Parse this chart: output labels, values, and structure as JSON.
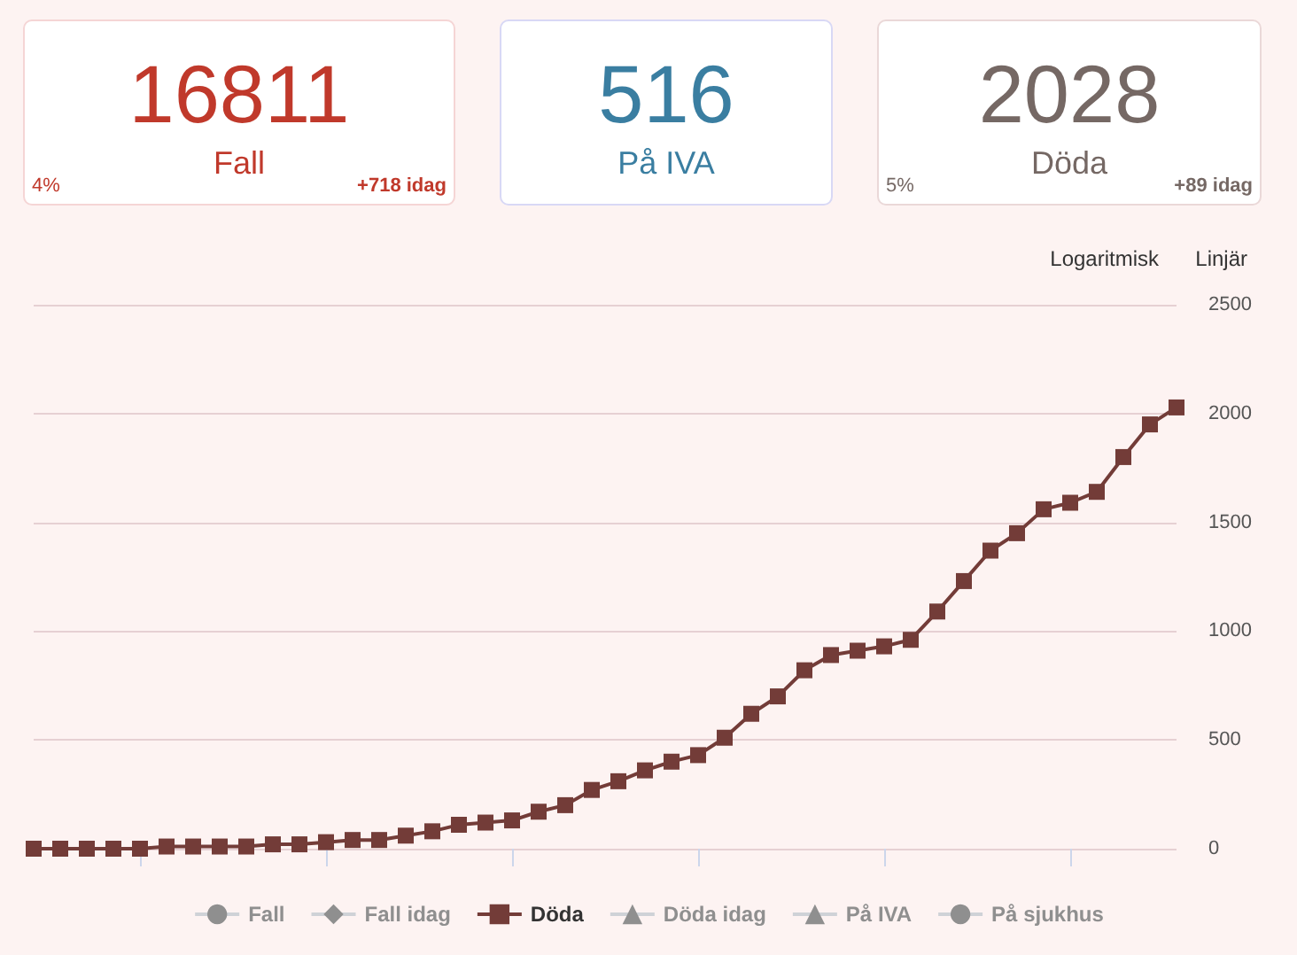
{
  "chart_data": [
    {
      "type": "other",
      "title": "16811",
      "subtitle": "Fall",
      "annotations": [
        "4%",
        "+718 idag"
      ],
      "color": "#c0392b"
    },
    {
      "type": "other",
      "title": "516",
      "subtitle": "På IVA",
      "color": "#3a7ea1"
    },
    {
      "type": "other",
      "title": "2028",
      "subtitle": "Döda",
      "annotations": [
        "5%",
        "+89 idag"
      ],
      "color": "#756864"
    },
    {
      "type": "line",
      "categories": [
        null,
        null,
        null,
        null,
        null,
        null,
        null,
        null,
        null,
        null,
        null,
        null,
        null,
        null,
        null,
        null,
        null,
        null,
        null,
        null,
        null,
        null,
        null,
        null,
        null,
        null,
        null,
        null,
        null,
        null,
        null,
        null,
        null,
        null,
        null,
        null,
        null,
        null,
        null,
        null,
        null,
        null,
        null,
        null
      ],
      "series": [
        {
          "name": "Fall",
          "color": "#cccccc",
          "marker": "circle",
          "values": [
            null,
            null,
            null,
            null,
            null,
            null,
            null,
            null,
            null,
            null,
            null,
            null,
            null,
            null,
            null,
            null,
            null,
            null,
            null,
            null,
            null,
            null,
            null,
            null,
            null,
            null,
            null,
            null,
            null,
            null,
            null,
            null,
            null,
            null,
            null,
            null,
            null,
            null,
            null,
            null,
            null,
            null,
            null,
            null
          ]
        },
        {
          "name": "Fall idag",
          "color": "#cccccc",
          "marker": "diamond",
          "values": [
            null,
            null,
            null,
            null,
            null,
            null,
            null,
            null,
            null,
            null,
            null,
            null,
            null,
            null,
            null,
            null,
            null,
            null,
            null,
            null,
            null,
            null,
            null,
            null,
            null,
            null,
            null,
            null,
            null,
            null,
            null,
            null,
            null,
            null,
            null,
            null,
            null,
            null,
            null,
            null,
            null,
            null,
            null,
            null
          ]
        },
        {
          "name": "Döda",
          "color": "#733c38",
          "marker": "square",
          "values": [
            0,
            0,
            0,
            0,
            0,
            10,
            10,
            10,
            10,
            20,
            20,
            30,
            40,
            40,
            60,
            80,
            110,
            120,
            130,
            170,
            200,
            270,
            310,
            360,
            400,
            430,
            510,
            620,
            700,
            820,
            890,
            910,
            930,
            960,
            1090,
            1230,
            1370,
            1450,
            1560,
            1590,
            1640,
            1800,
            1950,
            2028
          ]
        },
        {
          "name": "Döda idag",
          "color": "#cccccc",
          "marker": "triangle",
          "values": [
            null,
            null,
            null,
            null,
            null,
            null,
            null,
            null,
            null,
            null,
            null,
            null,
            null,
            null,
            null,
            null,
            null,
            null,
            null,
            null,
            null,
            null,
            null,
            null,
            null,
            null,
            null,
            null,
            null,
            null,
            null,
            null,
            null,
            null,
            null,
            null,
            null,
            null,
            null,
            null,
            null,
            null,
            null,
            null
          ]
        },
        {
          "name": "På IVA",
          "color": "#cccccc",
          "marker": "triangle",
          "values": [
            null,
            null,
            null,
            null,
            null,
            null,
            null,
            null,
            null,
            null,
            null,
            null,
            null,
            null,
            null,
            null,
            null,
            null,
            null,
            null,
            null,
            null,
            null,
            null,
            null,
            null,
            null,
            null,
            null,
            null,
            null,
            null,
            null,
            null,
            null,
            null,
            null,
            null,
            null,
            null,
            null,
            null,
            null,
            null
          ]
        },
        {
          "name": "På sjukhus",
          "color": "#cccccc",
          "marker": "circle",
          "values": [
            null,
            null,
            null,
            null,
            null,
            null,
            null,
            null,
            null,
            null,
            null,
            null,
            null,
            null,
            null,
            null,
            null,
            null,
            null,
            null,
            null,
            null,
            null,
            null,
            null,
            null,
            null,
            null,
            null,
            null,
            null,
            null,
            null,
            null,
            null,
            null,
            null,
            null,
            null,
            null,
            null,
            null,
            null,
            null
          ]
        }
      ],
      "ylim": [
        0,
        2500
      ],
      "yticks": [
        0,
        500,
        {
          "value": 1000,
          "label": "1000"
        },
        {
          "value": 1500,
          "label": "1500"
        },
        {
          "value": 2000,
          "label": "2000"
        },
        {
          "value": 2500,
          "label": "2500"
        }
      ],
      "grid": "y",
      "legend": "bottom",
      "line_style": "solid",
      "annotations": [
        "Logaritmisk",
        "Linjär"
      ]
    }
  ]
}
